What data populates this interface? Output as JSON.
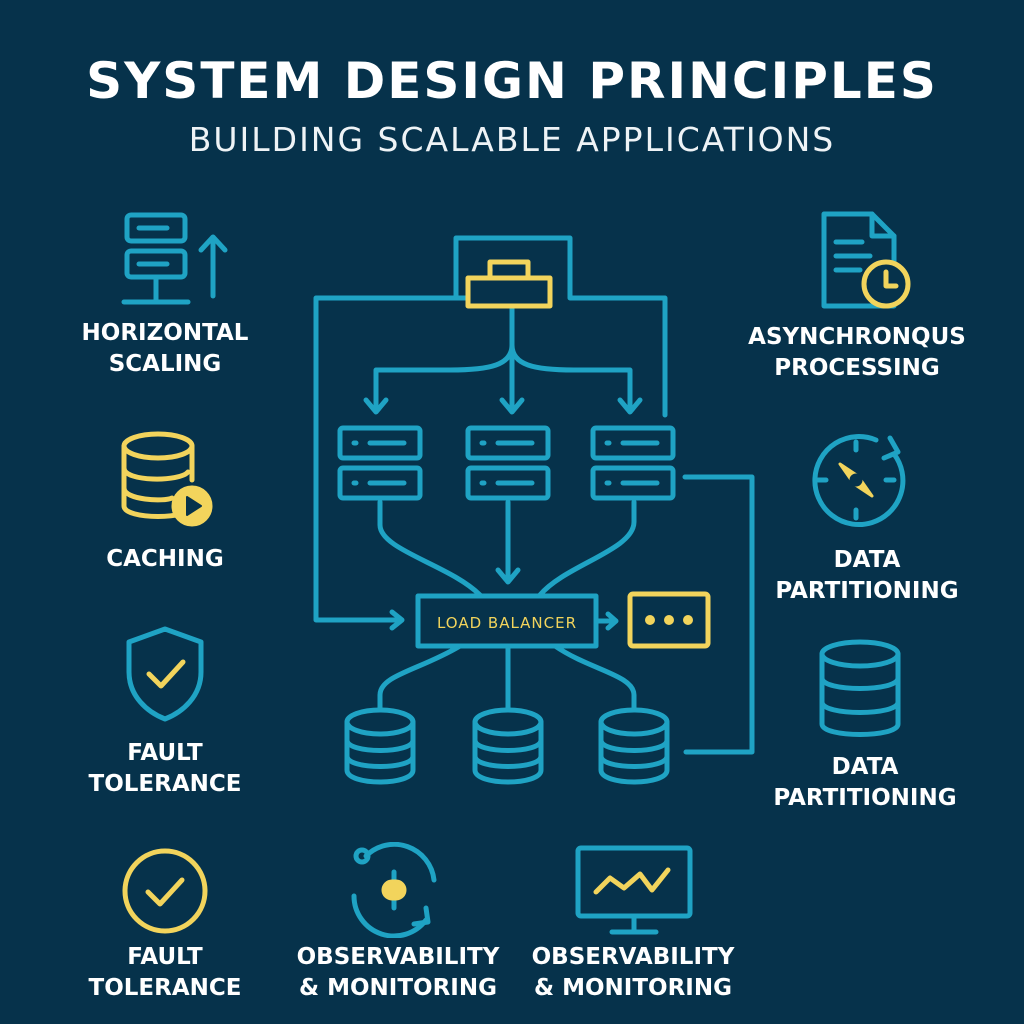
{
  "header": {
    "title": "SYSTEM DESIGN PRINCIPLES",
    "subtitle": "BUILDING SCALABLE APPLICATIONS"
  },
  "colors": {
    "background": "#06324b",
    "cyan": "#1fa3c4",
    "yellow": "#f2d45c",
    "text": "#ffffff"
  },
  "principles": [
    {
      "icon": "server-stack-arrow-icon",
      "label": "HORIZONTAL\nSCALING"
    },
    {
      "icon": "database-play-icon",
      "label": "CACHING"
    },
    {
      "icon": "shield-check-icon",
      "label": "FAULT\nTOLERANCE"
    },
    {
      "icon": "check-circle-icon",
      "label": "FAULT\nTOLERANCE"
    },
    {
      "icon": "document-clock-icon",
      "label": "ASYNCHRONQUS\nPROCESSING"
    },
    {
      "icon": "compass-icon",
      "label": "DATA\nPARTITIONING"
    },
    {
      "icon": "database-icon",
      "label": "DATA\nPARTITIONING"
    },
    {
      "icon": "cycle-icon",
      "label": "OBSERVABILITY\n& MONITORING"
    },
    {
      "icon": "monitor-chart-icon",
      "label": "OBSERVABILITY\n& MONITORING"
    }
  ],
  "diagram": {
    "load_balancer_label": "LOAD BALANCER"
  }
}
